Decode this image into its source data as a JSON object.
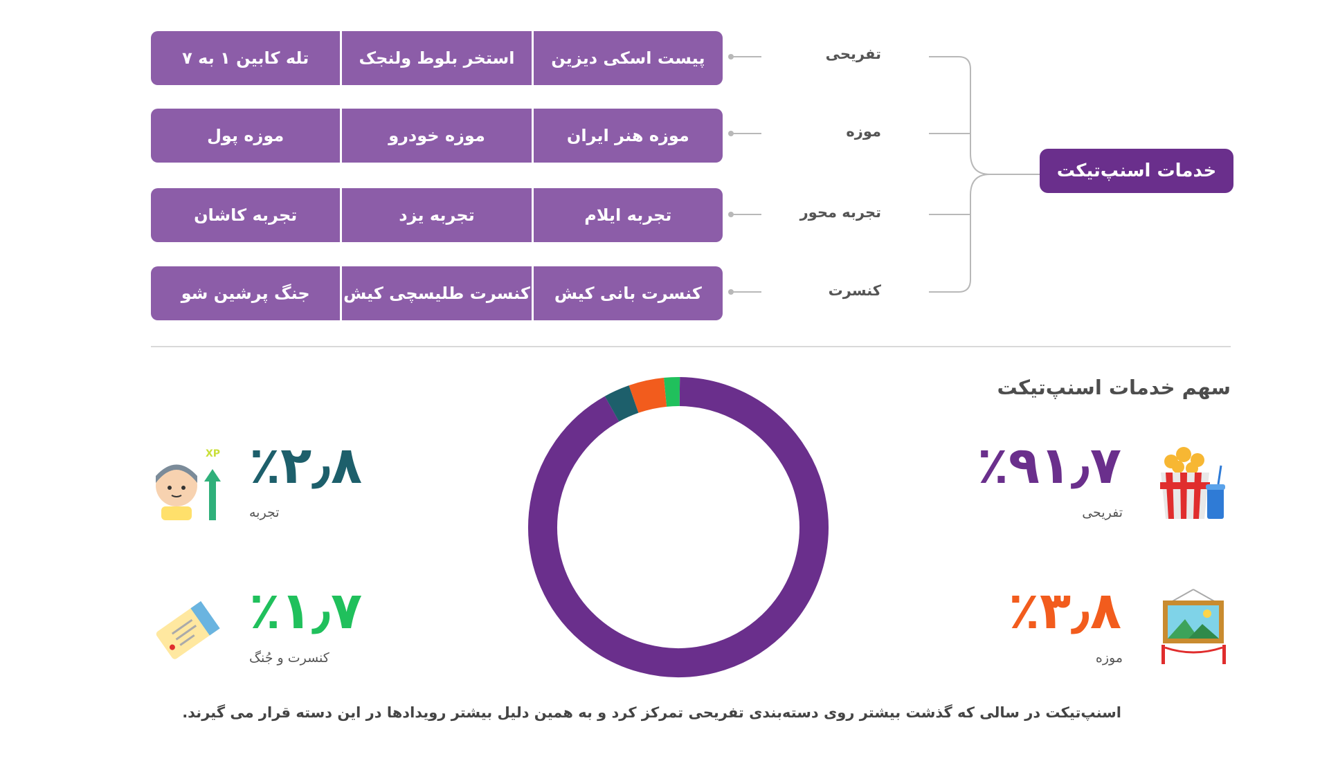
{
  "tree": {
    "root_label": "خدمات اسنپ‌تیکت",
    "categories": [
      {
        "label": "تفریحی",
        "items": [
          "پیست اسکی دیزین",
          "استخر بلوط ولنجک",
          "تله کابین ۱ به ۷"
        ]
      },
      {
        "label": "موزه",
        "items": [
          "موزه هنر ایران",
          "موزه خودرو",
          "موزه پول"
        ]
      },
      {
        "label": "تجربه محور",
        "items": [
          "تجربه ایلام",
          "تجربه یزد",
          "تجربه کاشان"
        ]
      },
      {
        "label": "کنسرت",
        "items": [
          "کنسرت بانی کیش",
          "کنسرت طلیسچی کیش",
          "جنگ پرشین شو"
        ]
      }
    ]
  },
  "chart_data": {
    "type": "pie",
    "title": "سهم خدمات اسنپ‌تیکت",
    "series": [
      {
        "name": "تفریحی",
        "value": 91.7,
        "display": "٪۹۱٫۷",
        "color": "#6a2f8c",
        "icon": "popcorn-icon"
      },
      {
        "name": "موزه",
        "value": 3.8,
        "display": "٪۳٫۸",
        "color": "#f25c1d",
        "icon": "painting-icon"
      },
      {
        "name": "تجربه",
        "value": 2.8,
        "display": "٪۲٫۸",
        "color": "#1d5f6b",
        "icon": "xp-avatar-icon"
      },
      {
        "name": "کنسرت و جُنگ",
        "value": 1.7,
        "display": "٪۱٫۷",
        "color": "#20c05c",
        "icon": "ticket-icon"
      }
    ]
  },
  "footnote": "اسنپ‌تیکت در سالی که گذشت بیشتر روی دسته‌بندی تفریحی تمرکز کرد و به همین دلیل بیشتر رویدادها در این دسته قرار می گیرند."
}
